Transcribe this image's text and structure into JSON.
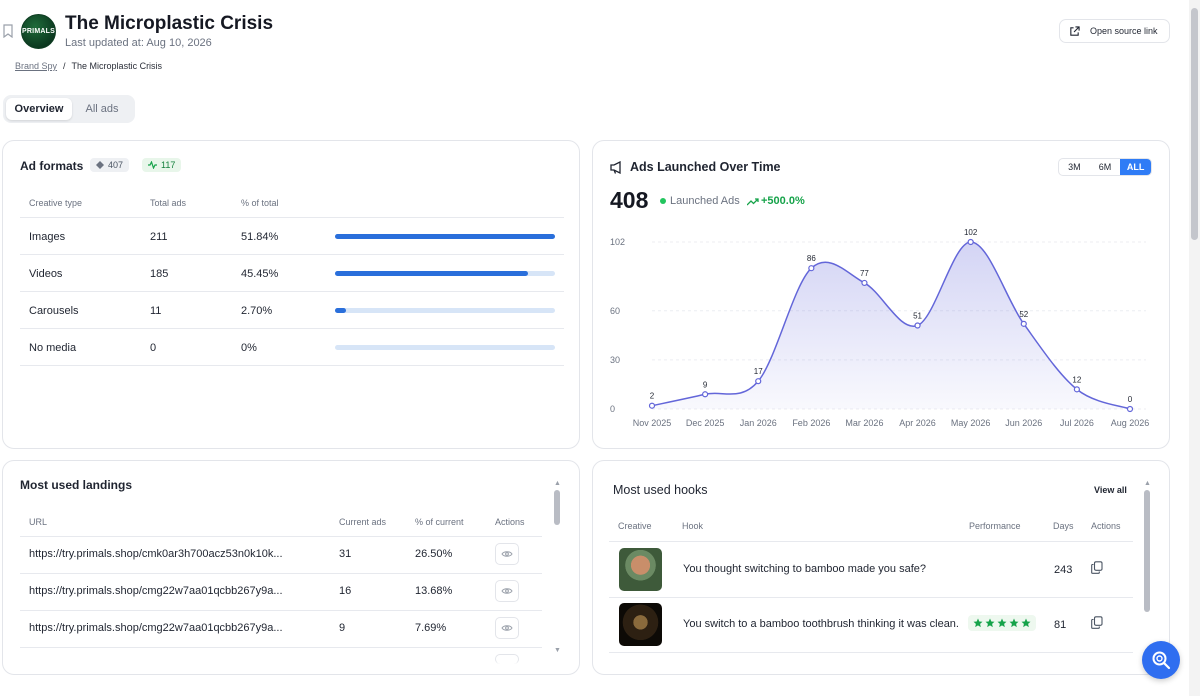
{
  "header": {
    "title": "The Microplastic Crisis",
    "updated": "Last updated at: Aug 10, 2026",
    "logo_text": "PRIMALS",
    "source_button": "Open source link"
  },
  "breadcrumb": {
    "parent": "Brand Spy",
    "sep": "/",
    "current": "The Microplastic Crisis"
  },
  "tabs": [
    {
      "label": "Overview",
      "active": true
    },
    {
      "label": "All ads",
      "active": false
    }
  ],
  "ad_formats": {
    "title": "Ad formats",
    "badge_total": "407",
    "badge_active": "117",
    "columns": [
      "Creative type",
      "Total ads",
      "% of total"
    ],
    "rows": [
      {
        "type": "Images",
        "total": "211",
        "pct": "51.84%",
        "fill": 1.0
      },
      {
        "type": "Videos",
        "total": "185",
        "pct": "45.45%",
        "fill": 0.877
      },
      {
        "type": "Carousels",
        "total": "11",
        "pct": "2.70%",
        "fill": 0.052
      },
      {
        "type": "No media",
        "total": "0",
        "pct": "0%",
        "fill": 0
      }
    ]
  },
  "ads_launched": {
    "title": "Ads Launched Over Time",
    "total": "408",
    "legend": "Launched Ads",
    "change": "+500.0%",
    "ranges": [
      "3M",
      "6M",
      "ALL"
    ],
    "active_range": "ALL"
  },
  "chart_data": {
    "type": "area",
    "x": [
      "Nov 2025",
      "Dec 2025",
      "Jan 2026",
      "Feb 2026",
      "Mar 2026",
      "Apr 2026",
      "May 2026",
      "Jun 2026",
      "Jul 2026",
      "Aug 2026"
    ],
    "values": [
      2,
      9,
      17,
      86,
      77,
      51,
      102,
      52,
      12,
      0
    ],
    "yticks": [
      0,
      30,
      60,
      102
    ],
    "ylim": [
      0,
      102
    ],
    "color": "#6366d9",
    "grid": true
  },
  "landings": {
    "title": "Most used landings",
    "columns": [
      "URL",
      "Current ads",
      "% of current",
      "Actions"
    ],
    "rows": [
      {
        "url": "https://try.primals.shop/cmk0ar3h700acz53n0k10k...",
        "ads": "31",
        "pct": "26.50%"
      },
      {
        "url": "https://try.primals.shop/cmg22w7aa01qcbb267y9a...",
        "ads": "16",
        "pct": "13.68%"
      },
      {
        "url": "https://try.primals.shop/cmg22w7aa01qcbb267y9a...",
        "ads": "9",
        "pct": "7.69%"
      }
    ]
  },
  "hooks": {
    "title": "Most used hooks",
    "view_all": "View all",
    "columns": [
      "Creative",
      "Hook",
      "Performance",
      "Days",
      "Actions"
    ],
    "rows": [
      {
        "hook": "You thought switching to bamboo made you safe?",
        "stars": 0,
        "days": "243"
      },
      {
        "hook": "You switch to a bamboo toothbrush thinking it was clean.",
        "stars": 5,
        "days": "81"
      }
    ]
  },
  "colors": {
    "accent": "#2f7cf6",
    "bar": "#2a6fdb",
    "positive": "#16a34a",
    "chart_line": "#6366d9"
  }
}
